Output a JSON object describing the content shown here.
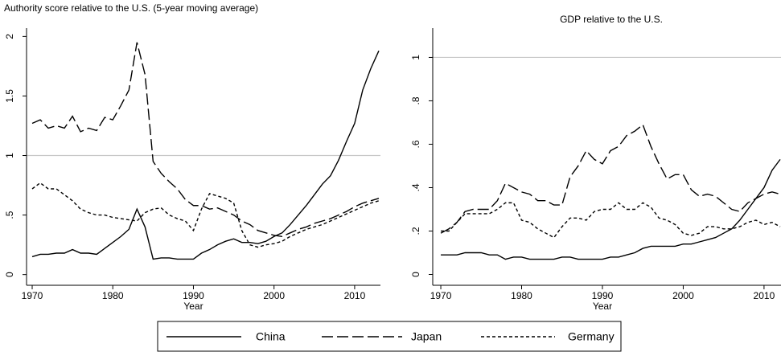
{
  "chart_data": [
    {
      "type": "line",
      "title": "Authority score relative to the U.S. (5-year moving average)",
      "x_label": "Year",
      "x": [
        1970,
        1971,
        1972,
        1973,
        1974,
        1975,
        1976,
        1977,
        1978,
        1979,
        1980,
        1981,
        1982,
        1983,
        1984,
        1985,
        1986,
        1987,
        1988,
        1989,
        1990,
        1991,
        1992,
        1993,
        1994,
        1995,
        1996,
        1997,
        1998,
        1999,
        2000,
        2001,
        2002,
        2003,
        2004,
        2005,
        2006,
        2007,
        2008,
        2009,
        2010,
        2011,
        2012,
        2013
      ],
      "series": [
        {
          "name": "China",
          "color": "#000000",
          "dash": "solid",
          "values": [
            0.15,
            0.17,
            0.17,
            0.18,
            0.18,
            0.21,
            0.18,
            0.18,
            0.17,
            0.22,
            0.27,
            0.32,
            0.38,
            0.55,
            0.4,
            0.13,
            0.14,
            0.14,
            0.13,
            0.13,
            0.13,
            0.18,
            0.21,
            0.25,
            0.28,
            0.3,
            0.27,
            0.27,
            0.26,
            0.28,
            0.32,
            0.35,
            0.42,
            0.5,
            0.58,
            0.67,
            0.76,
            0.83,
            0.96,
            1.12,
            1.27,
            1.55,
            1.73,
            1.88
          ]
        },
        {
          "name": "Japan",
          "color": "#000000",
          "dash": "long",
          "values": [
            1.27,
            1.3,
            1.23,
            1.25,
            1.23,
            1.33,
            1.2,
            1.23,
            1.21,
            1.32,
            1.3,
            1.42,
            1.55,
            1.95,
            1.68,
            0.95,
            0.85,
            0.78,
            0.72,
            0.63,
            0.58,
            0.58,
            0.55,
            0.56,
            0.53,
            0.5,
            0.45,
            0.42,
            0.37,
            0.35,
            0.33,
            0.32,
            0.35,
            0.38,
            0.4,
            0.43,
            0.45,
            0.47,
            0.5,
            0.53,
            0.57,
            0.6,
            0.62,
            0.64
          ]
        },
        {
          "name": "Germany",
          "color": "#000000",
          "dash": "short",
          "values": [
            0.72,
            0.77,
            0.72,
            0.72,
            0.67,
            0.62,
            0.55,
            0.52,
            0.5,
            0.5,
            0.48,
            0.47,
            0.46,
            0.45,
            0.52,
            0.55,
            0.56,
            0.5,
            0.47,
            0.45,
            0.37,
            0.55,
            0.68,
            0.66,
            0.64,
            0.6,
            0.37,
            0.25,
            0.23,
            0.25,
            0.26,
            0.28,
            0.32,
            0.35,
            0.38,
            0.4,
            0.42,
            0.45,
            0.48,
            0.51,
            0.54,
            0.57,
            0.6,
            0.62
          ]
        }
      ],
      "xlim": [
        1969.3,
        2013.2
      ],
      "xticks": [
        1970,
        1980,
        1990,
        2000,
        2010
      ],
      "ylim": [
        -0.09,
        2.07
      ],
      "yticks": [
        0,
        {
          "value": 0.5,
          "label": ".5"
        },
        1,
        {
          "value": 1.5,
          "label": "1.5"
        },
        2
      ],
      "reference_line": 1
    },
    {
      "type": "line",
      "title": "GDP relative to the U.S.",
      "x_label": "Year",
      "x": [
        1970,
        1971,
        1972,
        1973,
        1974,
        1975,
        1976,
        1977,
        1978,
        1979,
        1980,
        1981,
        1982,
        1983,
        1984,
        1985,
        1986,
        1987,
        1988,
        1989,
        1990,
        1991,
        1992,
        1993,
        1994,
        1995,
        1996,
        1997,
        1998,
        1999,
        2000,
        2001,
        2002,
        2003,
        2004,
        2005,
        2006,
        2007,
        2008,
        2009,
        2010,
        2011,
        2012
      ],
      "series": [
        {
          "name": "China",
          "color": "#000000",
          "dash": "solid",
          "values": [
            0.09,
            0.09,
            0.09,
            0.1,
            0.1,
            0.1,
            0.09,
            0.09,
            0.07,
            0.08,
            0.08,
            0.07,
            0.07,
            0.07,
            0.07,
            0.08,
            0.08,
            0.07,
            0.07,
            0.07,
            0.07,
            0.08,
            0.08,
            0.09,
            0.1,
            0.12,
            0.13,
            0.13,
            0.13,
            0.13,
            0.14,
            0.14,
            0.15,
            0.16,
            0.17,
            0.19,
            0.21,
            0.25,
            0.3,
            0.35,
            0.4,
            0.48,
            0.53
          ]
        },
        {
          "name": "Japan",
          "color": "#000000",
          "dash": "long",
          "values": [
            0.19,
            0.21,
            0.24,
            0.29,
            0.3,
            0.3,
            0.3,
            0.34,
            0.42,
            0.4,
            0.38,
            0.37,
            0.34,
            0.34,
            0.32,
            0.32,
            0.45,
            0.5,
            0.57,
            0.53,
            0.51,
            0.57,
            0.59,
            0.64,
            0.66,
            0.69,
            0.59,
            0.51,
            0.44,
            0.46,
            0.46,
            0.39,
            0.36,
            0.37,
            0.36,
            0.33,
            0.3,
            0.29,
            0.33,
            0.35,
            0.37,
            0.38,
            0.37
          ]
        },
        {
          "name": "Germany",
          "color": "#000000",
          "dash": "short",
          "values": [
            0.2,
            0.2,
            0.24,
            0.28,
            0.28,
            0.28,
            0.28,
            0.3,
            0.33,
            0.33,
            0.25,
            0.24,
            0.21,
            0.19,
            0.17,
            0.22,
            0.26,
            0.26,
            0.25,
            0.29,
            0.3,
            0.3,
            0.33,
            0.3,
            0.3,
            0.33,
            0.31,
            0.26,
            0.25,
            0.23,
            0.19,
            0.18,
            0.19,
            0.22,
            0.22,
            0.21,
            0.21,
            0.22,
            0.24,
            0.25,
            0.23,
            0.24,
            0.22
          ]
        }
      ],
      "xlim": [
        1969,
        2012.1
      ],
      "xticks": [
        1970,
        1980,
        1990,
        2000,
        2010
      ],
      "ylim": [
        -0.05,
        1.135
      ],
      "yticks": [
        0,
        {
          "value": 0.2,
          "label": ".2"
        },
        {
          "value": 0.4,
          "label": ".4"
        },
        {
          "value": 0.6,
          "label": ".6"
        },
        {
          "value": 0.8,
          "label": ".8"
        },
        1
      ],
      "reference_line": 1
    }
  ],
  "legend": {
    "position": "bottom"
  }
}
